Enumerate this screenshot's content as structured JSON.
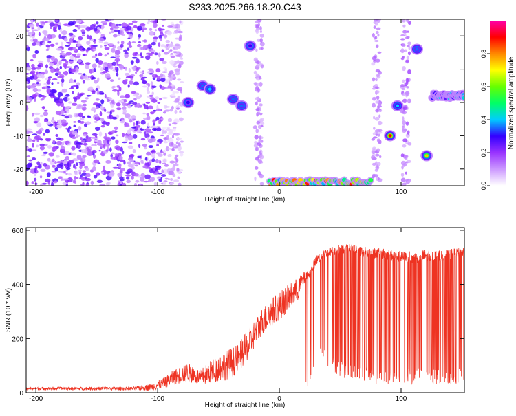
{
  "title": "S233.2025.266.18.20.C43",
  "chart_data": [
    {
      "type": "heatmap",
      "xlabel": "Height of straight line (km)",
      "ylabel": "Frequency (Hz)",
      "xlim": [
        -208,
        152
      ],
      "ylim": [
        -25,
        25
      ],
      "xticks": [
        -200,
        -100,
        0,
        100
      ],
      "yticks": [
        -20,
        -10,
        0,
        10,
        20
      ],
      "grid": false,
      "colorbar": {
        "label": "Normalized spectral amplitude",
        "range": [
          0,
          1
        ],
        "ticks": [
          "0.0",
          "0.2",
          "0.4",
          "0.6",
          "0.8"
        ],
        "colors": [
          "#ffffff",
          "#cc99ff",
          "#9933ff",
          "#3300ff",
          "#00ccff",
          "#00ff66",
          "#66ff00",
          "#ffff00",
          "#ff8800",
          "#ff0000",
          "#ff00aa"
        ]
      },
      "features": [
        {
          "name": "noise-band",
          "x": [
            -208,
            -80
          ],
          "y": [
            -25,
            25
          ],
          "amplitude": 0.15
        },
        {
          "name": "blob-1",
          "x": -63,
          "y": 5,
          "amplitude": 0.35
        },
        {
          "name": "blob-2",
          "x": -57,
          "y": 4,
          "amplitude": 0.4
        },
        {
          "name": "blob-3",
          "x": -38,
          "y": 1,
          "amplitude": 0.35
        },
        {
          "name": "blob-4",
          "x": -31,
          "y": -1,
          "amplitude": 0.35
        },
        {
          "name": "blob-5",
          "x": -75,
          "y": 0,
          "amplitude": 0.3
        },
        {
          "name": "blob-6",
          "x": -24,
          "y": 17,
          "amplitude": 0.3
        },
        {
          "name": "bottom-band",
          "x": [
            -8,
            75
          ],
          "y": -24,
          "amplitude": 0.9
        },
        {
          "name": "blob-7",
          "x": 91,
          "y": -10,
          "amplitude": 0.9
        },
        {
          "name": "blob-8",
          "x": 97,
          "y": -1,
          "amplitude": 0.4
        },
        {
          "name": "blob-9",
          "x": 113,
          "y": 16,
          "amplitude": 0.35
        },
        {
          "name": "blob-10",
          "x": 121,
          "y": -16,
          "amplitude": 0.75
        },
        {
          "name": "right-band",
          "x": [
            125,
            152
          ],
          "y": 2,
          "amplitude": 0.45
        },
        {
          "name": "vertical-track-1",
          "x": -17,
          "y": [
            -25,
            25
          ],
          "amplitude": 0.1
        },
        {
          "name": "vertical-track-2",
          "x": 80,
          "y": [
            -25,
            25
          ],
          "amplitude": 0.1
        },
        {
          "name": "vertical-track-3",
          "x": 104,
          "y": [
            -25,
            25
          ],
          "amplitude": 0.12
        }
      ]
    },
    {
      "type": "line",
      "xlabel": "Height of straight line (km)",
      "ylabel": "SNR (10 * v/v)",
      "xlim": [
        -208,
        152
      ],
      "ylim": [
        0,
        610
      ],
      "xticks": [
        -200,
        -100,
        0,
        100
      ],
      "yticks": [
        0,
        200,
        400,
        600
      ],
      "grid": false,
      "series": [
        {
          "name": "SNR",
          "color": "#ee3322",
          "x": [
            -208,
            -180,
            -150,
            -120,
            -105,
            -95,
            -85,
            -75,
            -65,
            -55,
            -45,
            -35,
            -25,
            -15,
            -5,
            5,
            15,
            20,
            25,
            30,
            40,
            50,
            60,
            70,
            80,
            90,
            100,
            110,
            120,
            130,
            140,
            152
          ],
          "baseline": [
            15,
            15,
            15,
            15,
            20,
            35,
            60,
            75,
            55,
            80,
            100,
            120,
            180,
            260,
            300,
            340,
            380,
            420,
            440,
            490,
            520,
            530,
            530,
            520,
            515,
            510,
            500,
            500,
            505,
            505,
            510,
            520
          ],
          "spread": [
            10,
            10,
            12,
            12,
            25,
            40,
            60,
            70,
            60,
            90,
            110,
            110,
            110,
            100,
            110,
            100,
            90,
            50,
            30,
            40,
            30,
            40,
            40,
            40,
            40,
            40,
            40,
            50,
            50,
            40,
            40,
            40
          ],
          "dropout_min": [
            0,
            0,
            0,
            0,
            0,
            0,
            0,
            0,
            0,
            0,
            0,
            0,
            0,
            0,
            0,
            0,
            0,
            0,
            0,
            120,
            90,
            60,
            40,
            40,
            30,
            30,
            30,
            30,
            30,
            30,
            30,
            30
          ],
          "dropout_rate": [
            0,
            0,
            0,
            0,
            0,
            0,
            0,
            0,
            0,
            0,
            0,
            0,
            0,
            0,
            0,
            0,
            0,
            0,
            0.04,
            0.1,
            0.18,
            0.22,
            0.22,
            0.2,
            0.25,
            0.25,
            0.25,
            0.28,
            0.3,
            0.3,
            0.3,
            0.3
          ]
        }
      ]
    }
  ]
}
